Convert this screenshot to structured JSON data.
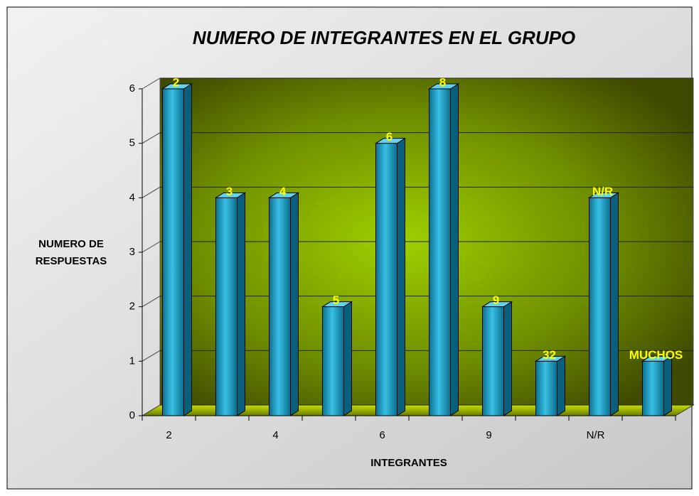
{
  "chart_data": {
    "type": "bar",
    "title": "NUMERO DE INTEGRANTES EN EL GRUPO",
    "xlabel": "INTEGRANTES",
    "ylabel": [
      "NUMERO DE",
      "RESPUESTAS"
    ],
    "categories": [
      "2",
      "3",
      "4",
      "5",
      "6",
      "8",
      "9",
      "32",
      "N/R",
      "MUCHOS"
    ],
    "values": [
      6,
      4,
      4,
      2,
      5,
      6,
      2,
      1,
      4,
      1
    ],
    "color": "#1e9fc4",
    "ylim": [
      0,
      6
    ],
    "yticks": [
      0,
      1,
      2,
      3,
      4,
      5,
      6
    ],
    "grid": true
  }
}
